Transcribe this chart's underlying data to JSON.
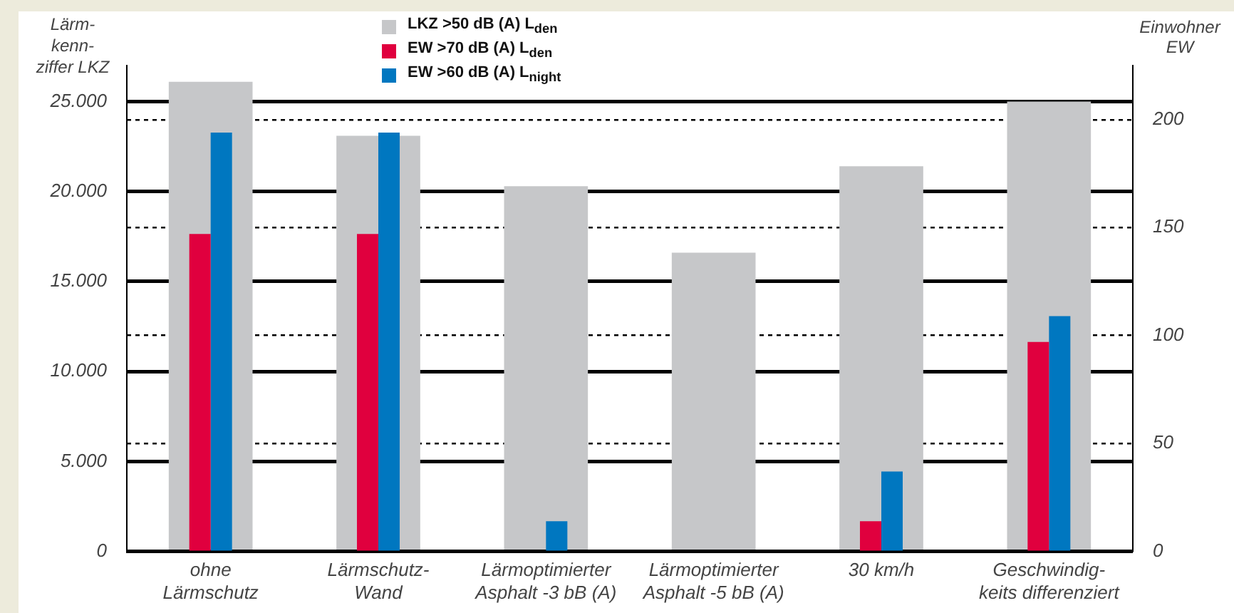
{
  "chart_data": {
    "type": "bar",
    "ylabel": "Lärm-\nkenn-\nziffer LKZ",
    "y2label": "Einwohner\nEW",
    "categories": [
      "ohne\nLärmschutz",
      "Lärmschutz-\nWand",
      "Lärmoptimierter\nAsphalt -3 bB (A)",
      "Lärmoptimierter\nAsphalt -5 bB (A)",
      "30 km/h",
      "Geschwindig-\nkeits differenziert"
    ],
    "series": [
      {
        "name": "LKZ >50 dB (A) L$_{den}$",
        "color": "#c6c7c9",
        "values": [
          26100,
          23100,
          20300,
          16600,
          21400,
          25000
        ]
      },
      {
        "name": "EW >70 dB (A) L$_{den}$",
        "color": "#e0003e",
        "axis": "y2",
        "values": [
          147,
          147,
          null,
          null,
          14,
          97
        ]
      },
      {
        "name": "EW >60 dB (A) L$_{night}$",
        "color": "#0077c0",
        "axis": "y2",
        "values": [
          194,
          194,
          14,
          null,
          37,
          109
        ]
      }
    ],
    "ylim": [
      0,
      27000
    ],
    "yticks": [
      {
        "value": 0,
        "label": "0"
      },
      {
        "value": 5000,
        "label": "5.000"
      },
      {
        "value": 10000,
        "label": "10.000"
      },
      {
        "value": 15000,
        "label": "15.000"
      },
      {
        "value": 20000,
        "label": "20.000"
      },
      {
        "value": 25000,
        "label": "25.000"
      }
    ],
    "y2lim": [
      0,
      225
    ],
    "y2ticks": [
      0,
      50,
      100,
      150,
      200
    ],
    "grid": "y",
    "legend": "top"
  }
}
